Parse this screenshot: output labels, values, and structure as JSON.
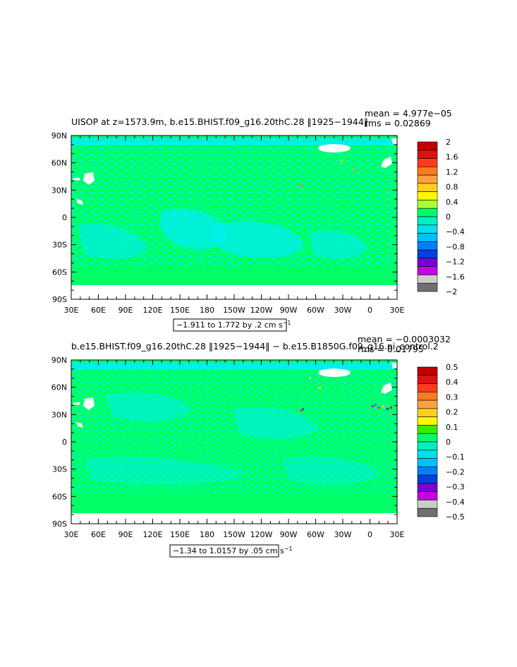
{
  "panels": [
    {
      "title": "UISOP at z=1573.9m, b.e15.BHIST.f09_g16.20thC.28 ‖1925−1944‖",
      "mean_label": "mean = 4.977e−05",
      "rms_label": "rms = 0.02869",
      "info_box": "−1.911 to 1.772 by .2 cm s",
      "info_sup": "−1",
      "colorbar_labels": [
        "2",
        "1.6",
        "1.2",
        "0.8",
        "0.4",
        "0",
        "−0.4",
        "−0.8",
        "−1.2",
        "−1.6",
        "−2"
      ],
      "colorbar_colors": [
        "#c00000",
        "#e01010",
        "#ff3a20",
        "#ff7a20",
        "#ffa040",
        "#ffd020",
        "#fff700",
        "#aaff33",
        "#00ff66",
        "#00f0c0",
        "#00e0f0",
        "#00c0ff",
        "#0080ff",
        "#0040e0",
        "#7a00d8",
        "#c800e8",
        "#cccccc",
        "#707070"
      ],
      "chart_data": {
        "type": "heatmap",
        "variable": "UISOP",
        "units": "cm s−1",
        "level": "z=1573.9m",
        "case": "b.e15.BHIST.f09_g16.20thC.28",
        "years": "1925−1944",
        "mean": 4.977e-05,
        "rms": 0.02869,
        "min": -1.911,
        "max": 1.772,
        "contour_interval": 0.2,
        "colorbar_range": [
          -2,
          2
        ]
      }
    },
    {
      "title": "b.e15.BHIST.f09_g16.20thC.28 ‖1925−1944‖ − b.e15.B1850G.f09_g16.pi_control.2",
      "mean_label": "mean = −0.0003032",
      "rms_label": "rms = 0.01795",
      "info_box": "−1.34 to 1.0157 by .05 cm s",
      "info_sup": "−1",
      "colorbar_labels": [
        "0.5",
        "0.4",
        "0.3",
        "0.2",
        "0.1",
        "0",
        "−0.1",
        "−0.2",
        "−0.3",
        "−0.4",
        "−0.5"
      ],
      "colorbar_colors": [
        "#c00000",
        "#e01010",
        "#ff3a20",
        "#ff7a20",
        "#ffa040",
        "#ffd020",
        "#fff700",
        "#33ee00",
        "#00ff66",
        "#00f0c0",
        "#00e0f0",
        "#00c0ff",
        "#0080ff",
        "#0040e0",
        "#7a00d8",
        "#c800e8",
        "#cccccc",
        "#707070"
      ],
      "chart_data": {
        "type": "heatmap",
        "variable": "UISOP difference",
        "units": "cm s−1",
        "case": "b.e15.BHIST.f09_g16.20thC.28",
        "control": "b.e15.B1850G.f09_g16.pi_control.2",
        "years": "1925−1944",
        "mean": -0.0003032,
        "rms": 0.01795,
        "min": -1.34,
        "max": 1.0157,
        "contour_interval": 0.05,
        "colorbar_range": [
          -0.5,
          0.5
        ]
      }
    }
  ],
  "axes": {
    "lat_labels": [
      "90N",
      "60N",
      "30N",
      "0",
      "30S",
      "60S",
      "90S"
    ],
    "lon_labels": [
      "30E",
      "60E",
      "90E",
      "120E",
      "150E",
      "180",
      "150W",
      "120W",
      "90W",
      "60W",
      "30W",
      "0",
      "30E"
    ],
    "lat_range": [
      -90,
      90
    ],
    "lon_range": [
      30,
      390
    ]
  },
  "colors": {
    "zero_band": "#00ff66",
    "neg_band": "#00f0e8",
    "land": "#ffffff"
  }
}
